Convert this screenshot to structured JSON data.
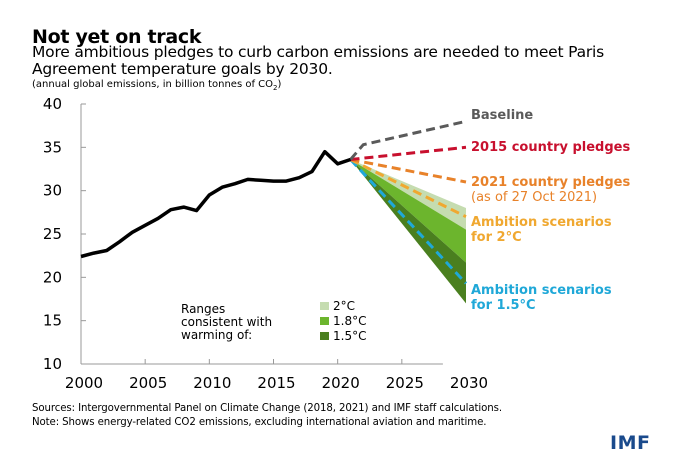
{
  "header": {
    "title": "Not yet on track",
    "subtitle": "More ambitious pledges to curb carbon emissions are needed to meet Paris Agreement temperature goals by 2030.",
    "units_prefix": "(annual global emissions, in billion tonnes of CO",
    "units_sub": "2",
    "units_suffix": ")"
  },
  "footer": {
    "sources": "Sources: Intergovernmental Panel on Climate Change (2018, 2021) and IMF staff calculations.",
    "note": "Note: Shows energy-related CO2 emissions, excluding international aviation and maritime.",
    "logo": "IMF"
  },
  "colors": {
    "historical": "#000000",
    "baseline": "#5a5a5a",
    "pledges_2015": "#c8102e",
    "pledges_2021": "#e8822a",
    "ambition_2c": "#f0a830",
    "ambition_15c": "#1fa8d8",
    "band_2c": "#c5dcb0",
    "band_18c": "#6cb52d",
    "band_15c": "#4a7f1f",
    "logo": "#1a4a8c"
  },
  "chart_data": {
    "type": "line",
    "title": "Not yet on track",
    "xlabel": "",
    "ylabel": "annual global emissions, in billion tonnes of CO2",
    "xlim": [
      2000,
      2030
    ],
    "ylim": [
      10,
      40
    ],
    "x_ticks": [
      2000,
      2005,
      2010,
      2015,
      2020,
      2025,
      2030
    ],
    "y_ticks": [
      10,
      15,
      20,
      25,
      30,
      35,
      40
    ],
    "grid": false,
    "series": [
      {
        "name": "Historical",
        "style": "solid",
        "x": [
          2000,
          2001,
          2002,
          2003,
          2004,
          2005,
          2006,
          2007,
          2008,
          2009,
          2010,
          2011,
          2012,
          2013,
          2014,
          2015,
          2016,
          2017,
          2018,
          2019,
          2020,
          2021
        ],
        "y": [
          22.4,
          22.8,
          23.1,
          24.1,
          25.2,
          26.0,
          26.8,
          27.8,
          28.1,
          27.7,
          29.5,
          30.4,
          30.8,
          31.3,
          31.2,
          31.1,
          31.1,
          31.5,
          32.2,
          34.5,
          33.1,
          33.6
        ]
      },
      {
        "name": "Baseline",
        "style": "dashed",
        "x": [
          2021,
          2022,
          2030
        ],
        "y": [
          33.6,
          35.3,
          38.0
        ]
      },
      {
        "name": "2015 country pledges",
        "style": "dashed",
        "x": [
          2021,
          2030
        ],
        "y": [
          33.6,
          35.0
        ]
      },
      {
        "name": "2021 country pledges (as of 27 Oct 2021)",
        "style": "dashed",
        "x": [
          2021,
          2030
        ],
        "y": [
          33.6,
          31.0
        ]
      },
      {
        "name": "Ambition scenarios for 2°C",
        "style": "dashed",
        "x": [
          2021,
          2030
        ],
        "y": [
          33.6,
          27.0
        ]
      },
      {
        "name": "Ambition scenarios for 1.5°C",
        "style": "dashed",
        "x": [
          2021,
          2030
        ],
        "y": [
          33.6,
          19.3
        ]
      }
    ],
    "bands": [
      {
        "name": "2°C",
        "x": [
          2021,
          2030
        ],
        "upper": [
          33.6,
          28.0
        ],
        "lower": [
          33.6,
          25.5
        ]
      },
      {
        "name": "1.8°C",
        "x": [
          2021,
          2030
        ],
        "upper": [
          33.6,
          25.5
        ],
        "lower": [
          33.6,
          21.7
        ]
      },
      {
        "name": "1.5°C",
        "x": [
          2021,
          2030
        ],
        "upper": [
          33.6,
          21.7
        ],
        "lower": [
          33.6,
          17.0
        ]
      }
    ],
    "annotations": [
      {
        "text": "Baseline",
        "series": "Baseline"
      },
      {
        "text": "2015 country pledges",
        "series": "2015 country pledges"
      },
      {
        "text": "2021 country pledges",
        "sub": "(as of 27 Oct 2021)",
        "series": "2021 country pledges (as of 27 Oct 2021)"
      },
      {
        "text": "Ambition scenarios",
        "sub": "for 2°C",
        "series": "Ambition scenarios for 2°C"
      },
      {
        "text": "Ambition scenarios",
        "sub": "for 1.5°C",
        "series": "Ambition scenarios for 1.5°C"
      }
    ],
    "legend": {
      "title_lines": [
        "Ranges",
        "consistent with",
        "warming of:"
      ],
      "entries": [
        "2°C",
        "1.8°C",
        "1.5°C"
      ],
      "placement": "bottom-center"
    }
  }
}
